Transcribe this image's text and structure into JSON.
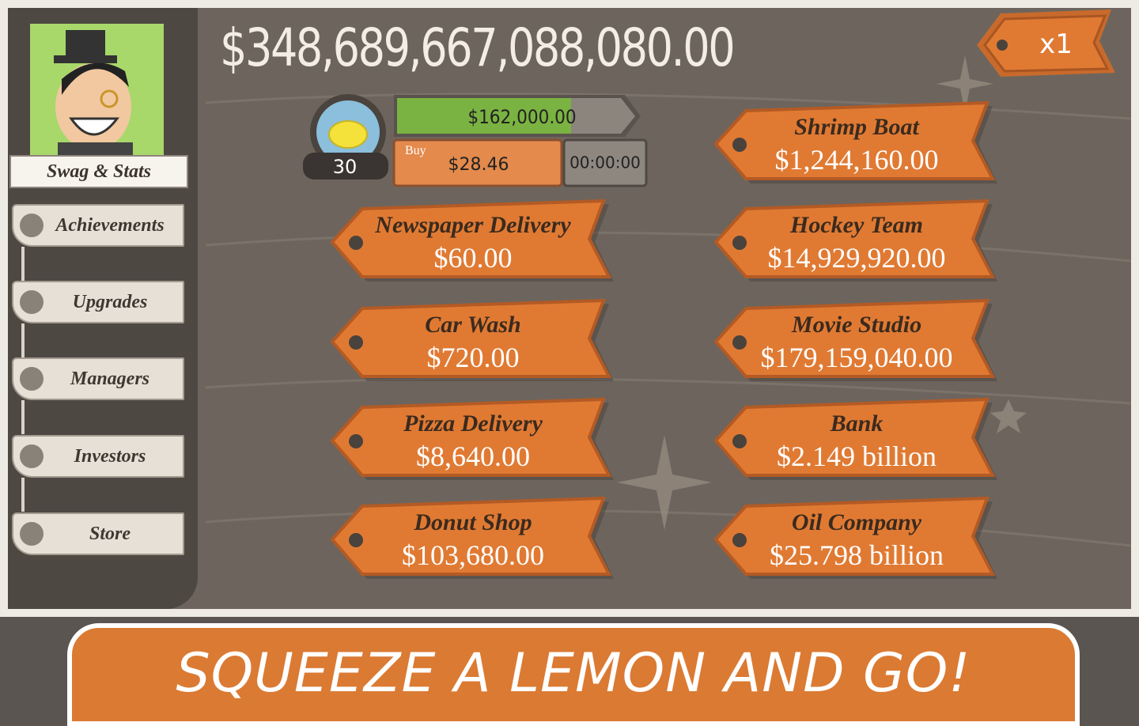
{
  "money": "$348,689,667,088,080.00",
  "multiplier": "x1",
  "sidebar": {
    "profile": "Swag & Stats",
    "menu": [
      "Achievements",
      "Upgrades",
      "Managers",
      "Investors",
      "Store"
    ]
  },
  "lemonade": {
    "owned": 30,
    "progress_value": "$162,000.00",
    "buy_label": "Buy",
    "buy_price": "$28.46",
    "timer": "00:00:00"
  },
  "businesses": [
    {
      "name": "Newspaper Delivery",
      "price": "$60.00"
    },
    {
      "name": "Car Wash",
      "price": "$720.00"
    },
    {
      "name": "Pizza Delivery",
      "price": "$8,640.00"
    },
    {
      "name": "Donut Shop",
      "price": "$103,680.00"
    },
    {
      "name": "Shrimp Boat",
      "price": "$1,244,160.00"
    },
    {
      "name": "Hockey Team",
      "price": "$14,929,920.00"
    },
    {
      "name": "Movie Studio",
      "price": "$179,159,040.00"
    },
    {
      "name": "Bank",
      "price": "$2.149 billion"
    },
    {
      "name": "Oil Company",
      "price": "$25.798 billion"
    }
  ],
  "banner": "SQUEEZE A LEMON AND GO!"
}
